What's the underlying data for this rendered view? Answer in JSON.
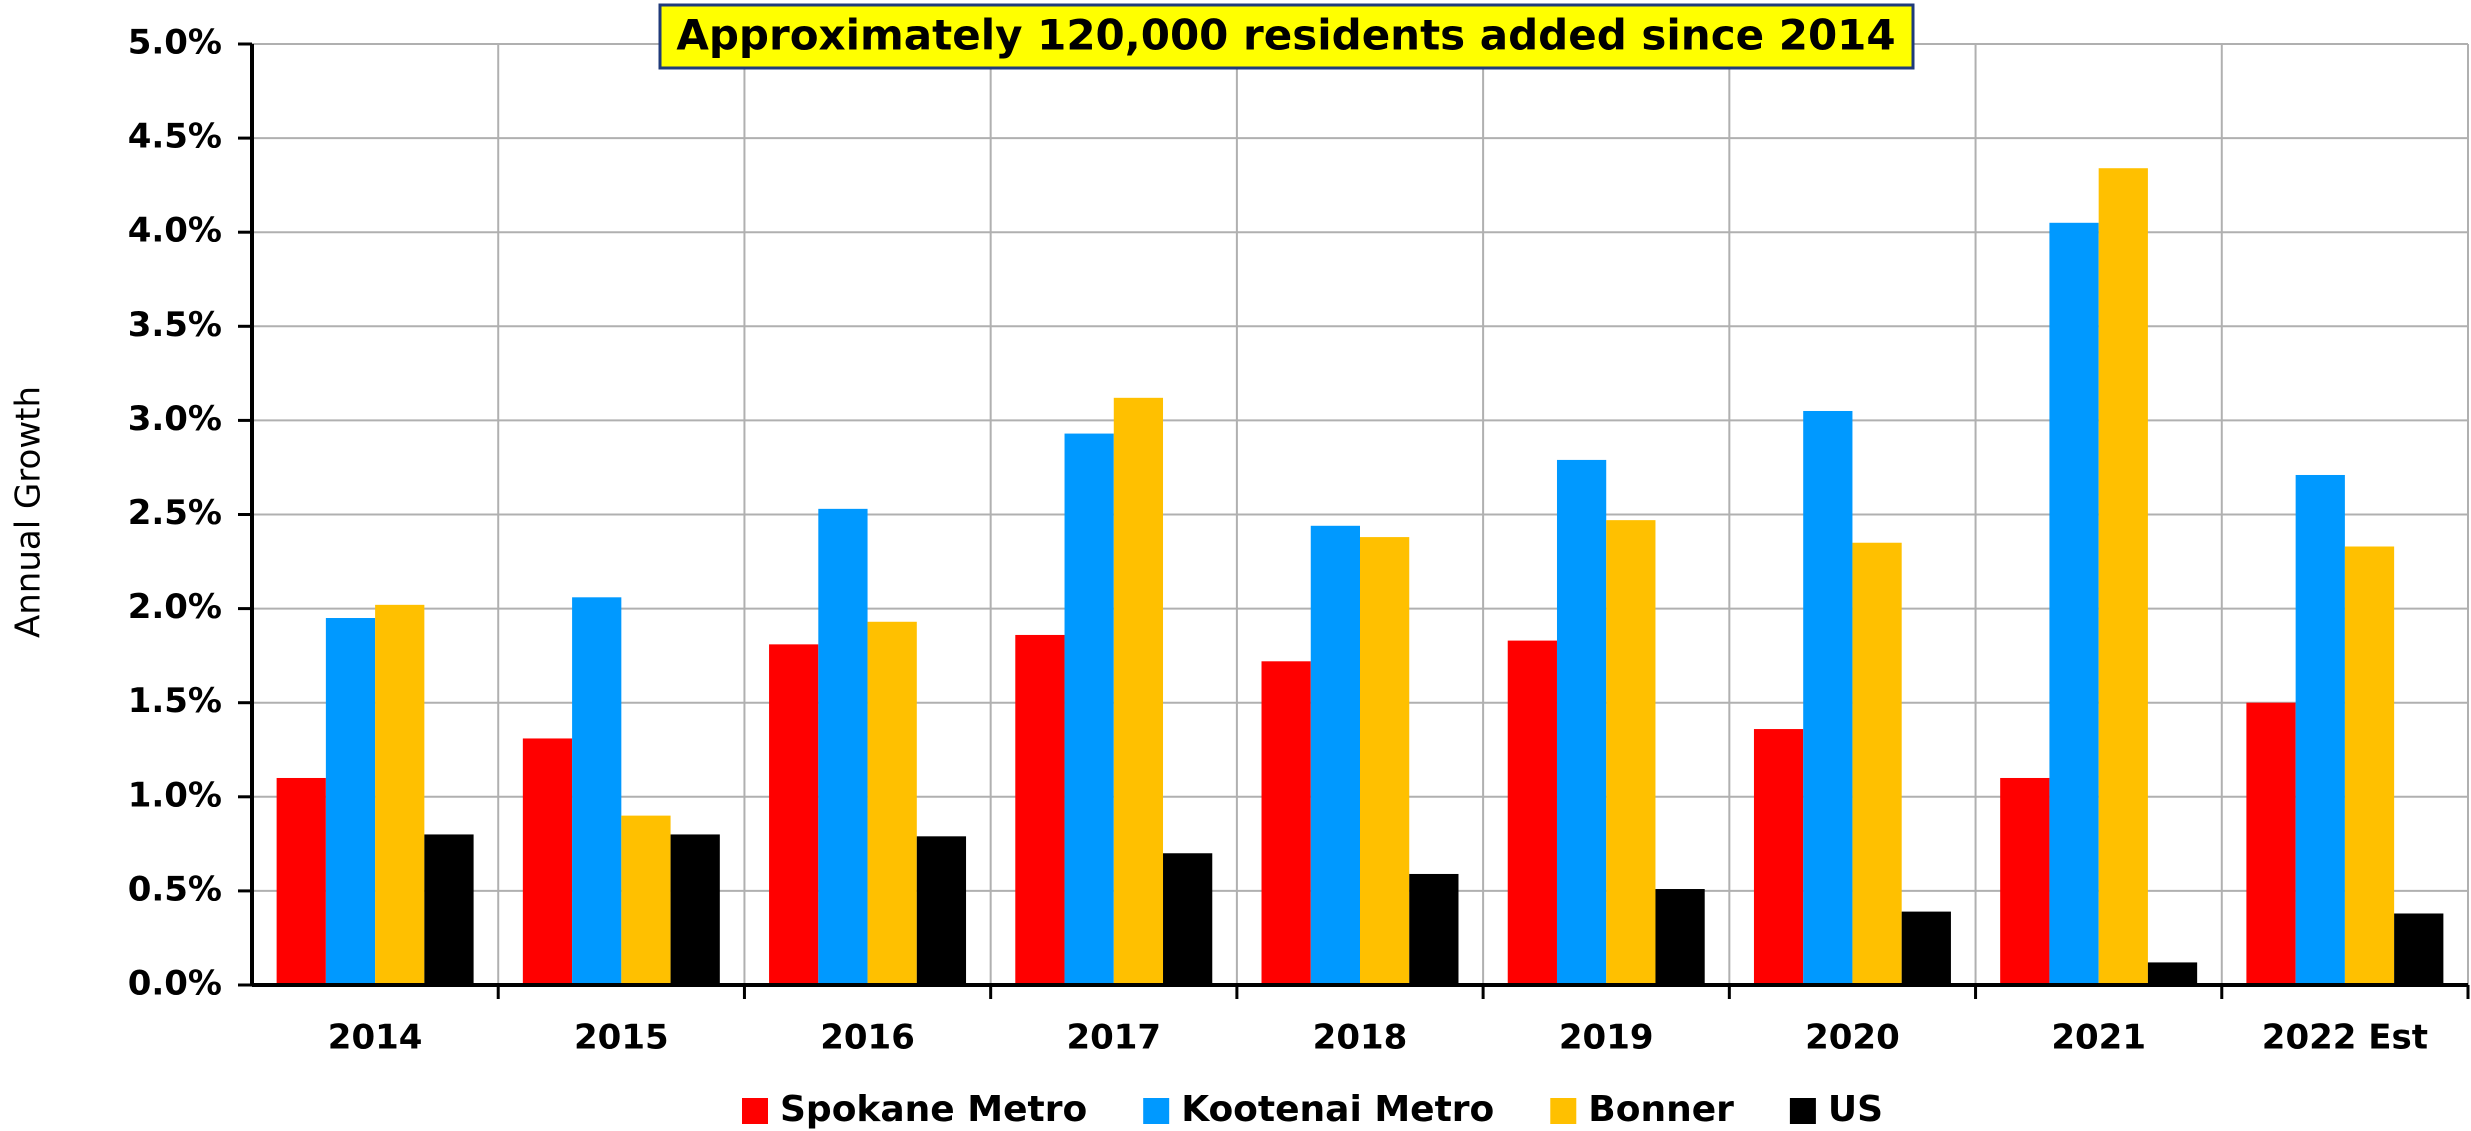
{
  "chart_data": {
    "type": "bar",
    "title": "Approximately 120,000 residents added since 2014",
    "y_label": "Annual Growth",
    "categories": [
      "2014",
      "2015",
      "2016",
      "2017",
      "2018",
      "2019",
      "2020",
      "2021",
      "2022 Est"
    ],
    "series": [
      {
        "name": "Spokane Metro",
        "color": "#ff0000",
        "values": [
          1.1,
          1.31,
          1.81,
          1.86,
          1.72,
          1.83,
          1.36,
          1.1,
          1.5
        ]
      },
      {
        "name": "Kootenai Metro",
        "color": "#0099ff",
        "values": [
          1.95,
          2.06,
          2.53,
          2.93,
          2.44,
          2.79,
          3.05,
          4.05,
          2.71
        ]
      },
      {
        "name": "Bonner",
        "color": "#ffc000",
        "values": [
          2.02,
          0.9,
          1.93,
          3.12,
          2.38,
          2.47,
          2.35,
          4.34,
          2.33
        ]
      },
      {
        "name": "US",
        "color": "#000000",
        "values": [
          0.8,
          0.8,
          0.79,
          0.7,
          0.59,
          0.51,
          0.39,
          0.12,
          0.38
        ]
      }
    ],
    "ylim": [
      0,
      5
    ],
    "yticks": [
      {
        "value": 0,
        "label": "0.0%"
      },
      {
        "value": 0.5,
        "label": "0.5%"
      },
      {
        "value": 1,
        "label": "1.0%"
      },
      {
        "value": 1.5,
        "label": "1.5%"
      },
      {
        "value": 2,
        "label": "2.0%"
      },
      {
        "value": 2.5,
        "label": "2.5%"
      },
      {
        "value": 3,
        "label": "3.0%"
      },
      {
        "value": 3.5,
        "label": "3.5%"
      },
      {
        "value": 4,
        "label": "4.0%"
      },
      {
        "value": 4.5,
        "label": "4.5%"
      },
      {
        "value": 5,
        "label": "5.0%"
      }
    ],
    "grid": true,
    "legend": "bottom"
  }
}
